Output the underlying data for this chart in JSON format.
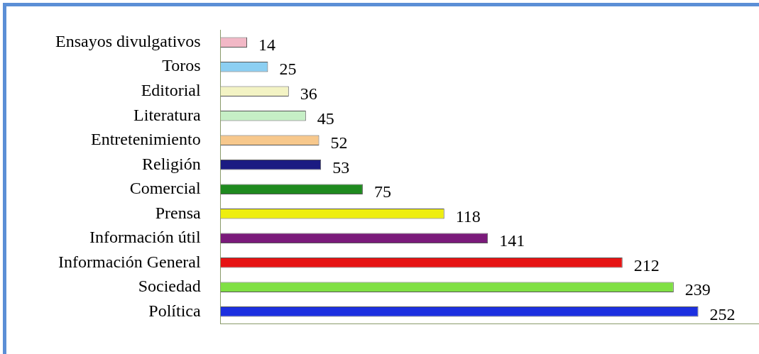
{
  "chart_data": {
    "type": "bar",
    "orientation": "horizontal",
    "categories": [
      "Ensayos divulgativos",
      "Toros",
      "Editorial",
      "Literatura",
      "Entretenimiento",
      "Religión",
      "Comercial",
      "Prensa",
      "Información útil",
      "Información General",
      "Sociedad",
      "Política"
    ],
    "values": [
      14,
      25,
      36,
      45,
      52,
      53,
      75,
      118,
      141,
      212,
      239,
      252
    ],
    "colors": [
      "#f2b8c6",
      "#8ccff2",
      "#f3f3c4",
      "#c6efc6",
      "#f7c88c",
      "#1b1b82",
      "#1f8a1f",
      "#eeee10",
      "#7a1a7a",
      "#e61414",
      "#80e044",
      "#1c30e0"
    ],
    "xlim": [
      0,
      284
    ],
    "tick_labels": "y",
    "data_labels": true,
    "grid": false,
    "legend": false
  }
}
